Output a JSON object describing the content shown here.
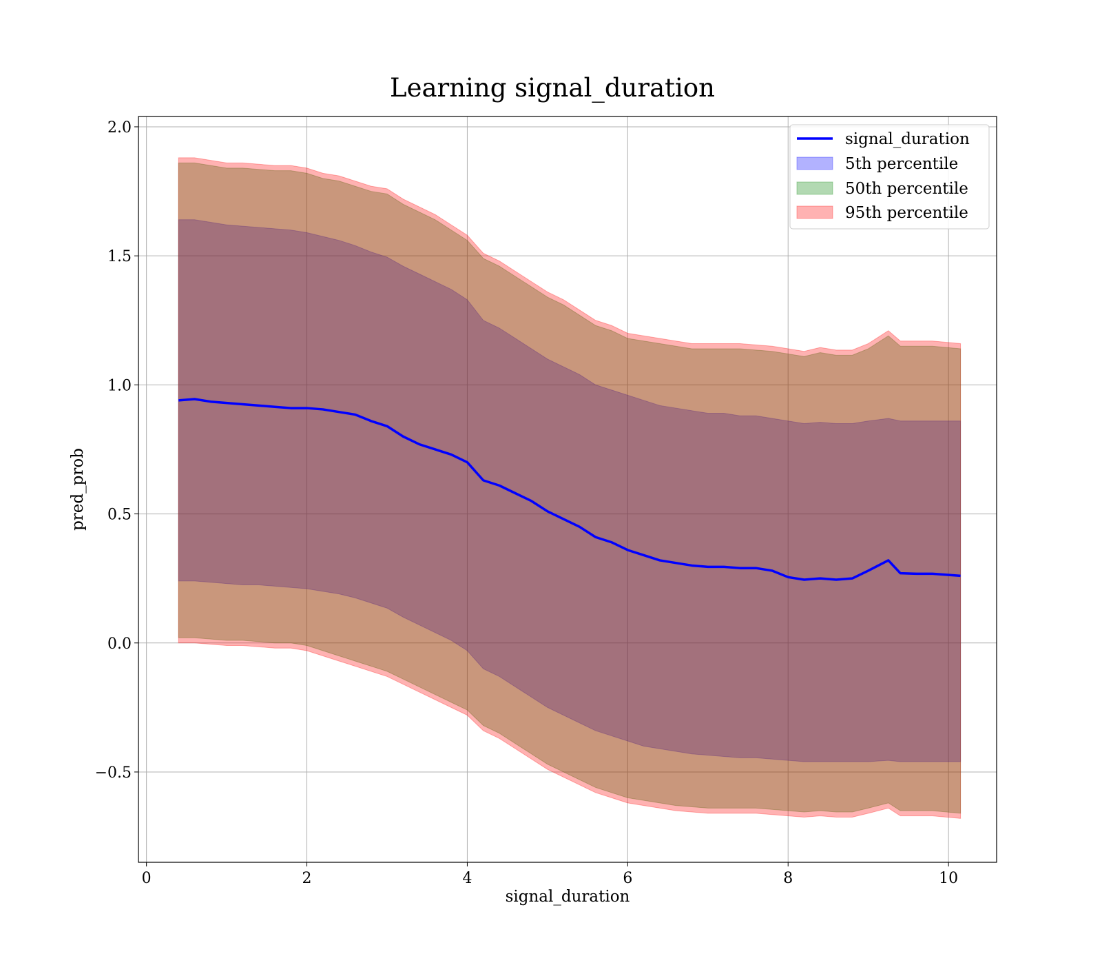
{
  "chart_data": {
    "type": "area",
    "title": "Learning signal_duration",
    "xlabel": "signal_duration",
    "ylabel": "pred_prob",
    "xlim": [
      -0.1,
      10.6
    ],
    "ylim": [
      -0.85,
      2.04
    ],
    "xticks": [
      0,
      2,
      4,
      6,
      8,
      10
    ],
    "xtick_labels": [
      "0",
      "2",
      "4",
      "6",
      "8",
      "10"
    ],
    "yticks": [
      -0.5,
      0.0,
      0.5,
      1.0,
      1.5,
      2.0
    ],
    "ytick_labels": [
      "−0.5",
      "0.0",
      "0.5",
      "1.0",
      "1.5",
      "2.0"
    ],
    "grid": true,
    "legend_position": "top-right",
    "x": [
      0.4,
      0.6,
      0.8,
      1.0,
      1.2,
      1.4,
      1.6,
      1.8,
      2.0,
      2.2,
      2.4,
      2.6,
      2.8,
      3.0,
      3.2,
      3.4,
      3.6,
      3.8,
      4.0,
      4.2,
      4.4,
      4.6,
      4.8,
      5.0,
      5.2,
      5.4,
      5.6,
      5.8,
      6.0,
      6.2,
      6.4,
      6.6,
      6.8,
      7.0,
      7.2,
      7.4,
      7.6,
      7.8,
      8.0,
      8.2,
      8.4,
      8.6,
      8.8,
      9.0,
      9.25,
      9.4,
      9.6,
      9.8,
      10.15
    ],
    "series": [
      {
        "name": "signal_duration",
        "kind": "line",
        "color": "#0000ff",
        "values": [
          0.94,
          0.945,
          0.935,
          0.93,
          0.925,
          0.92,
          0.915,
          0.91,
          0.91,
          0.905,
          0.895,
          0.885,
          0.86,
          0.84,
          0.8,
          0.77,
          0.75,
          0.73,
          0.7,
          0.63,
          0.61,
          0.58,
          0.55,
          0.51,
          0.48,
          0.45,
          0.41,
          0.39,
          0.36,
          0.34,
          0.32,
          0.31,
          0.3,
          0.295,
          0.295,
          0.29,
          0.29,
          0.28,
          0.255,
          0.245,
          0.25,
          0.245,
          0.25,
          0.28,
          0.32,
          0.27,
          0.268,
          0.268,
          0.26
        ]
      },
      {
        "name": "5th percentile",
        "kind": "band",
        "color": "#0000ff",
        "upper": [
          1.64,
          1.64,
          1.63,
          1.62,
          1.615,
          1.61,
          1.605,
          1.6,
          1.59,
          1.575,
          1.56,
          1.54,
          1.515,
          1.495,
          1.46,
          1.43,
          1.4,
          1.37,
          1.33,
          1.25,
          1.22,
          1.18,
          1.14,
          1.1,
          1.07,
          1.04,
          1.0,
          0.98,
          0.96,
          0.94,
          0.92,
          0.91,
          0.9,
          0.89,
          0.89,
          0.88,
          0.88,
          0.87,
          0.86,
          0.85,
          0.855,
          0.85,
          0.85,
          0.86,
          0.87,
          0.86,
          0.86,
          0.86,
          0.86
        ],
        "lower": [
          0.24,
          0.24,
          0.235,
          0.23,
          0.225,
          0.225,
          0.22,
          0.215,
          0.21,
          0.2,
          0.19,
          0.175,
          0.155,
          0.135,
          0.1,
          0.07,
          0.04,
          0.01,
          -0.03,
          -0.1,
          -0.13,
          -0.17,
          -0.21,
          -0.25,
          -0.28,
          -0.31,
          -0.34,
          -0.36,
          -0.38,
          -0.4,
          -0.41,
          -0.42,
          -0.43,
          -0.435,
          -0.44,
          -0.445,
          -0.445,
          -0.45,
          -0.455,
          -0.46,
          -0.46,
          -0.46,
          -0.46,
          -0.46,
          -0.455,
          -0.46,
          -0.46,
          -0.46,
          -0.46
        ]
      },
      {
        "name": "50th percentile",
        "kind": "band",
        "color": "#008000",
        "upper": [
          1.86,
          1.86,
          1.85,
          1.84,
          1.84,
          1.835,
          1.83,
          1.83,
          1.82,
          1.8,
          1.79,
          1.77,
          1.75,
          1.74,
          1.7,
          1.67,
          1.64,
          1.6,
          1.56,
          1.49,
          1.46,
          1.42,
          1.38,
          1.34,
          1.31,
          1.27,
          1.23,
          1.21,
          1.18,
          1.17,
          1.16,
          1.15,
          1.14,
          1.14,
          1.14,
          1.14,
          1.135,
          1.13,
          1.12,
          1.11,
          1.125,
          1.115,
          1.115,
          1.14,
          1.19,
          1.15,
          1.15,
          1.15,
          1.14
        ],
        "lower": [
          0.02,
          0.02,
          0.015,
          0.01,
          0.01,
          0.005,
          0.0,
          0.0,
          -0.01,
          -0.03,
          -0.05,
          -0.07,
          -0.09,
          -0.11,
          -0.14,
          -0.17,
          -0.2,
          -0.23,
          -0.26,
          -0.32,
          -0.35,
          -0.39,
          -0.43,
          -0.47,
          -0.5,
          -0.53,
          -0.56,
          -0.58,
          -0.6,
          -0.61,
          -0.62,
          -0.63,
          -0.635,
          -0.64,
          -0.64,
          -0.64,
          -0.64,
          -0.645,
          -0.65,
          -0.655,
          -0.65,
          -0.655,
          -0.655,
          -0.64,
          -0.62,
          -0.65,
          -0.65,
          -0.65,
          -0.66
        ]
      },
      {
        "name": "95th percentile",
        "kind": "band",
        "color": "#ff0000",
        "upper": [
          1.88,
          1.88,
          1.87,
          1.86,
          1.86,
          1.855,
          1.85,
          1.85,
          1.84,
          1.82,
          1.81,
          1.79,
          1.77,
          1.76,
          1.72,
          1.69,
          1.66,
          1.62,
          1.58,
          1.51,
          1.48,
          1.44,
          1.4,
          1.36,
          1.33,
          1.29,
          1.25,
          1.23,
          1.2,
          1.19,
          1.18,
          1.17,
          1.16,
          1.16,
          1.16,
          1.16,
          1.155,
          1.15,
          1.14,
          1.13,
          1.145,
          1.135,
          1.135,
          1.16,
          1.21,
          1.17,
          1.17,
          1.17,
          1.16
        ],
        "lower": [
          0.0,
          0.0,
          -0.005,
          -0.01,
          -0.01,
          -0.015,
          -0.02,
          -0.02,
          -0.03,
          -0.05,
          -0.07,
          -0.09,
          -0.11,
          -0.13,
          -0.16,
          -0.19,
          -0.22,
          -0.25,
          -0.28,
          -0.34,
          -0.37,
          -0.41,
          -0.45,
          -0.49,
          -0.52,
          -0.55,
          -0.58,
          -0.6,
          -0.62,
          -0.63,
          -0.64,
          -0.65,
          -0.655,
          -0.66,
          -0.66,
          -0.66,
          -0.66,
          -0.665,
          -0.67,
          -0.675,
          -0.67,
          -0.675,
          -0.675,
          -0.66,
          -0.64,
          -0.67,
          -0.67,
          -0.67,
          -0.68
        ]
      }
    ]
  }
}
